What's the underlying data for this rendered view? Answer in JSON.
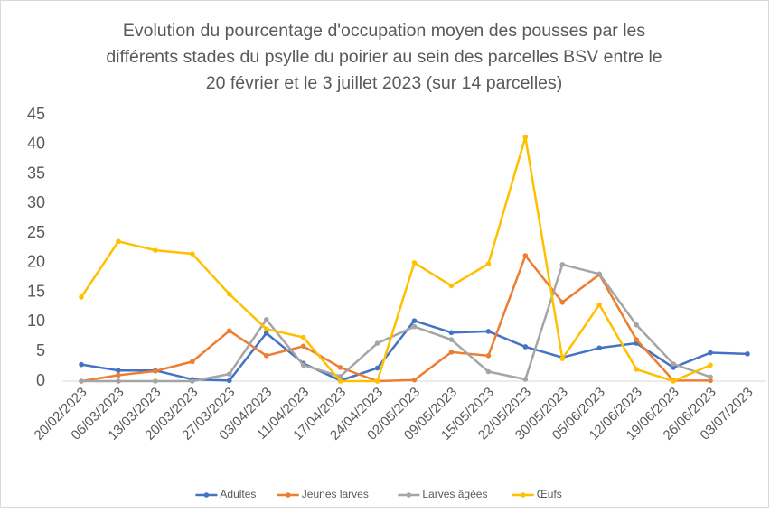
{
  "chart_data": {
    "type": "line",
    "title": [
      "Evolution du pourcentage d'occupation moyen des pousses par les",
      "différents stades du psylle du poirier au sein des parcelles BSV entre le",
      "20 février et le 3 juillet 2023 (sur 14 parcelles)"
    ],
    "categories": [
      "20/02/2023",
      "06/03/2023",
      "13/03/2023",
      "20/03/2023",
      "27/03/2023",
      "03/04/2023",
      "11/04/2023",
      "17/04/2023",
      "24/04/2023",
      "02/05/2023",
      "09/05/2023",
      "15/05/2023",
      "22/05/2023",
      "30/05/2023",
      "05/06/2023",
      "12/06/2023",
      "19/06/2023",
      "26/06/2023",
      "03/07/2023"
    ],
    "series": [
      {
        "name": "Adultes",
        "color": "#4472c4",
        "values": [
          2.8,
          1.8,
          1.8,
          0.3,
          0.1,
          8.1,
          3.0,
          0.1,
          2.2,
          10.2,
          8.2,
          8.4,
          5.8,
          4.0,
          5.6,
          6.4,
          2.3,
          4.8,
          4.6
        ]
      },
      {
        "name": "Jeunes larves",
        "color": "#ed7d31",
        "values": [
          0,
          1.0,
          1.7,
          3.3,
          8.5,
          4.3,
          5.9,
          2.3,
          0,
          0.2,
          4.9,
          4.3,
          21.2,
          13.3,
          18.0,
          7.0,
          0.1,
          0.1,
          null
        ]
      },
      {
        "name": "Larves âgées",
        "color": "#a5a5a5",
        "values": [
          0,
          0,
          0,
          0,
          1.2,
          10.4,
          2.7,
          0.8,
          6.4,
          9.2,
          7.0,
          1.6,
          0.3,
          19.7,
          18.1,
          9.5,
          2.9,
          0.7,
          null
        ]
      },
      {
        "name": "Œufs",
        "color": "#ffc000",
        "values": [
          14.2,
          23.6,
          22.1,
          21.5,
          14.7,
          8.8,
          7.4,
          0,
          0,
          20.0,
          16.1,
          19.8,
          41.2,
          3.8,
          12.9,
          2.0,
          0,
          2.7,
          null
        ]
      }
    ],
    "ylim": [
      0,
      45
    ],
    "yticks": [
      0,
      5,
      10,
      15,
      20,
      25,
      30,
      35,
      40,
      45
    ],
    "grid": false,
    "legend": "bottom"
  }
}
